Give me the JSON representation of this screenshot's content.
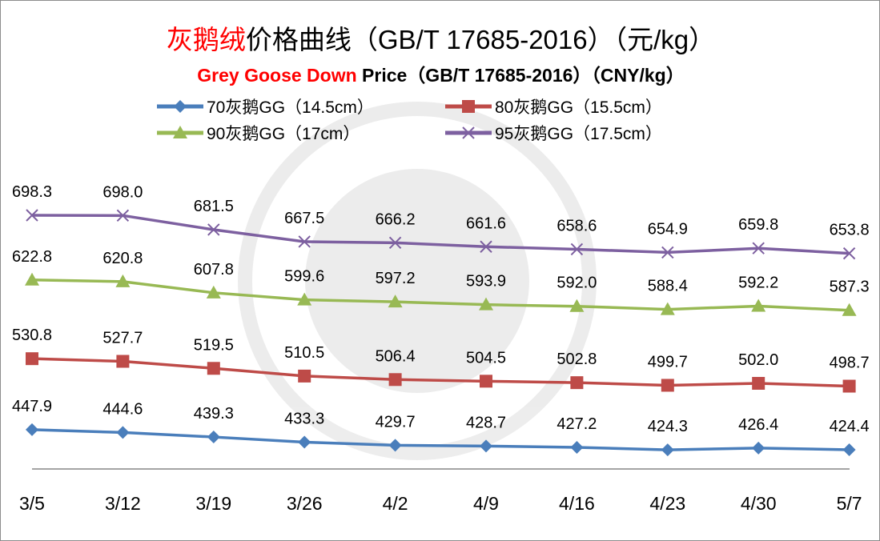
{
  "chart_data": {
    "type": "line",
    "title": {
      "red": "灰鹅绒",
      "black": "价格曲线（GB/T 17685-2016）（元/kg）"
    },
    "subtitle": {
      "red": "Grey Goose Down",
      "black": " Price（GB/T 17685-2016）（CNY/kg）"
    },
    "categories": [
      "3/5",
      "3/12",
      "3/19",
      "3/26",
      "4/2",
      "4/9",
      "4/16",
      "4/23",
      "4/30",
      "5/7"
    ],
    "ylim": [
      400,
      720
    ],
    "grid": false,
    "legend_position": "top",
    "series": [
      {
        "name": "70灰鹅GG（14.5cm）",
        "color": "#4a7ebb",
        "marker": "diamond",
        "values": [
          447.9,
          444.6,
          439.3,
          433.3,
          429.7,
          428.7,
          427.2,
          424.3,
          426.4,
          424.4
        ]
      },
      {
        "name": "80灰鹅GG（15.5cm）",
        "color": "#be4b48",
        "marker": "square",
        "values": [
          530.8,
          527.7,
          519.5,
          510.5,
          506.4,
          504.5,
          502.8,
          499.7,
          502.0,
          498.7
        ]
      },
      {
        "name": "90灰鹅GG（17cm）",
        "color": "#98b954",
        "marker": "triangle",
        "values": [
          622.8,
          620.8,
          607.8,
          599.6,
          597.2,
          593.9,
          592.0,
          588.4,
          592.2,
          587.3
        ]
      },
      {
        "name": "95灰鹅GG（17.5cm）",
        "color": "#7d60a0",
        "marker": "x",
        "values": [
          698.3,
          698.0,
          681.5,
          667.5,
          666.2,
          661.6,
          658.6,
          654.9,
          659.8,
          653.8
        ]
      }
    ]
  }
}
